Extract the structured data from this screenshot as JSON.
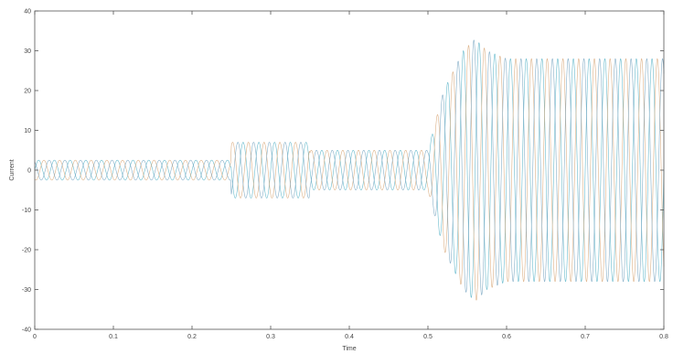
{
  "chart_data": {
    "type": "line",
    "title": "",
    "xlabel": "Time",
    "ylabel": "Current",
    "xlim": [
      0,
      0.8
    ],
    "ylim": [
      -40,
      40
    ],
    "x_ticks": [
      0,
      0.1,
      0.2,
      0.3,
      0.4,
      0.5,
      0.6,
      0.7,
      0.8
    ],
    "x_tick_labels": [
      "0",
      "0.1",
      "0.2",
      "0.3",
      "0.4",
      "0.5",
      "0.6",
      "0.7",
      "0.8"
    ],
    "y_ticks": [
      -40,
      -30,
      -20,
      -10,
      0,
      10,
      20,
      30,
      40
    ],
    "y_tick_labels": [
      "-40",
      "-30",
      "-20",
      "-10",
      "0",
      "10",
      "20",
      "30",
      "40"
    ],
    "grid": false,
    "frequency_hz": 50,
    "series": [
      {
        "color": "#5ab4c8",
        "phase_deg": 0
      },
      {
        "color": "#d8a97a",
        "phase_deg": 120
      },
      {
        "color": "#7aa6c2",
        "phase_deg": 240
      }
    ],
    "envelope": {
      "time": [
        0,
        0.249,
        0.25,
        0.349,
        0.35,
        0.499,
        0.5,
        0.52,
        0.545,
        0.56,
        0.575,
        0.6,
        0.8
      ],
      "amplitude": [
        2.5,
        2.5,
        7,
        7,
        5,
        5,
        5,
        20,
        30,
        33,
        30,
        28,
        28
      ]
    }
  }
}
